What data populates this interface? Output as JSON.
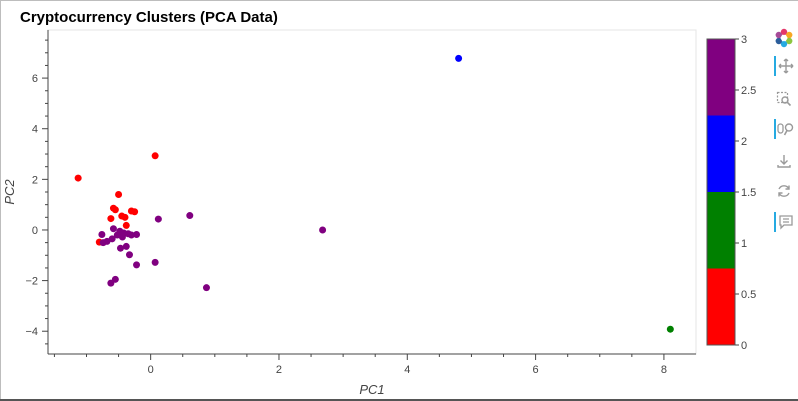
{
  "chart_data": {
    "type": "scatter",
    "title": "Cryptocurrency Clusters (PCA Data)",
    "xlabel": "PC1",
    "ylabel": "PC2",
    "xlim": [
      -1.6,
      8.5
    ],
    "ylim": [
      -4.9,
      7.9
    ],
    "x_ticks": [
      0,
      2,
      4,
      6,
      8
    ],
    "y_ticks": [
      -4,
      -2,
      0,
      2,
      4,
      6
    ],
    "x_tick_labels": [
      "0",
      "2",
      "4",
      "6",
      "8"
    ],
    "y_tick_labels": [
      "−4",
      "−2",
      "0",
      "2",
      "4",
      "6"
    ],
    "grid": false,
    "colorbar": {
      "range": [
        0,
        3
      ],
      "tick_labels": [
        "0",
        "0.5",
        "1",
        "1.5",
        "2",
        "2.5",
        "3"
      ],
      "colors": [
        "#ff0000",
        "#008000",
        "#0000ff",
        "#800080"
      ]
    },
    "points": [
      {
        "x": -1.13,
        "y": 2.05,
        "cluster": 0
      },
      {
        "x": 0.07,
        "y": 2.93,
        "cluster": 0
      },
      {
        "x": -0.5,
        "y": 1.4,
        "cluster": 0
      },
      {
        "x": -0.58,
        "y": 0.86,
        "cluster": 0
      },
      {
        "x": -0.55,
        "y": 0.8,
        "cluster": 0
      },
      {
        "x": -0.3,
        "y": 0.75,
        "cluster": 0
      },
      {
        "x": -0.25,
        "y": 0.72,
        "cluster": 0
      },
      {
        "x": -0.45,
        "y": 0.55,
        "cluster": 0
      },
      {
        "x": -0.4,
        "y": 0.5,
        "cluster": 0
      },
      {
        "x": -0.62,
        "y": 0.45,
        "cluster": 0
      },
      {
        "x": -0.38,
        "y": 0.18,
        "cluster": 0
      },
      {
        "x": -0.8,
        "y": -0.48,
        "cluster": 0
      },
      {
        "x": 8.1,
        "y": -3.92,
        "cluster": 1
      },
      {
        "x": 4.8,
        "y": 6.78,
        "cluster": 2
      },
      {
        "x": 2.68,
        "y": 0.0,
        "cluster": 3
      },
      {
        "x": 0.61,
        "y": 0.57,
        "cluster": 3
      },
      {
        "x": 0.12,
        "y": 0.43,
        "cluster": 3
      },
      {
        "x": -0.58,
        "y": 0.05,
        "cluster": 3
      },
      {
        "x": -0.48,
        "y": -0.05,
        "cluster": 3
      },
      {
        "x": -0.42,
        "y": -0.12,
        "cluster": 3
      },
      {
        "x": -0.35,
        "y": -0.15,
        "cluster": 3
      },
      {
        "x": -0.52,
        "y": -0.2,
        "cluster": 3
      },
      {
        "x": -0.3,
        "y": -0.2,
        "cluster": 3
      },
      {
        "x": -0.22,
        "y": -0.18,
        "cluster": 3
      },
      {
        "x": -0.44,
        "y": -0.28,
        "cluster": 3
      },
      {
        "x": -0.6,
        "y": -0.35,
        "cluster": 3
      },
      {
        "x": -0.76,
        "y": -0.18,
        "cluster": 3
      },
      {
        "x": -0.68,
        "y": -0.45,
        "cluster": 3
      },
      {
        "x": -0.74,
        "y": -0.5,
        "cluster": 3
      },
      {
        "x": -0.38,
        "y": -0.65,
        "cluster": 3
      },
      {
        "x": -0.47,
        "y": -0.72,
        "cluster": 3
      },
      {
        "x": -0.33,
        "y": -0.98,
        "cluster": 3
      },
      {
        "x": 0.07,
        "y": -1.28,
        "cluster": 3
      },
      {
        "x": -0.22,
        "y": -1.38,
        "cluster": 3
      },
      {
        "x": -0.55,
        "y": -1.95,
        "cluster": 3
      },
      {
        "x": -0.62,
        "y": -2.1,
        "cluster": 3
      },
      {
        "x": 0.87,
        "y": -2.28,
        "cluster": 3
      }
    ]
  },
  "toolbar": {
    "logo": "bokeh-logo-icon",
    "tools": [
      "pan-icon",
      "box-zoom-icon",
      "wheel-zoom-icon",
      "save-icon",
      "reset-icon",
      "hover-icon"
    ]
  }
}
